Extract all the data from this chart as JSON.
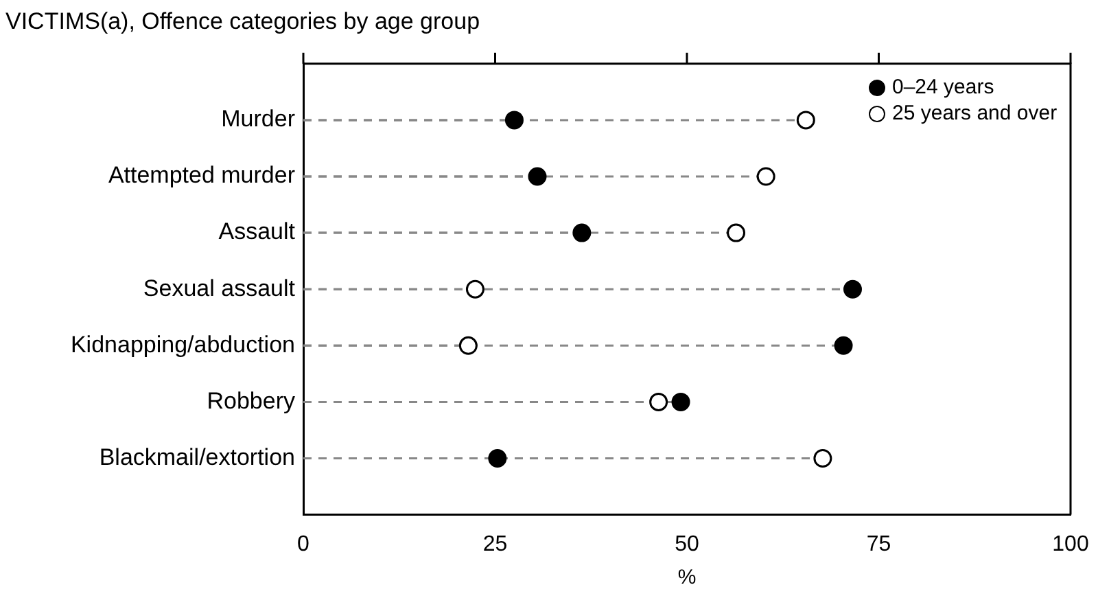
{
  "chart_data": {
    "type": "lollipop",
    "title": "VICTIMS(a), Offence categories by age group",
    "xlabel": "%",
    "categories": [
      "Murder",
      "Attempted murder",
      "Assault",
      "Sexual assault",
      "Kidnapping/abduction",
      "Robbery",
      "Blackmail/extortion"
    ],
    "orientation": "horizontal",
    "xlim": [
      0,
      100
    ],
    "xticks": [
      0,
      25,
      50,
      75,
      100
    ],
    "series": [
      {
        "name": "0–24 years",
        "color": "#000000",
        "values": [
          27.5,
          30.5,
          36.3,
          71.6,
          70.4,
          49.2,
          25.3
        ]
      },
      {
        "name": "25 years and over",
        "color": "#ffffff",
        "values": [
          65.5,
          60.3,
          56.4,
          22.4,
          21.5,
          46.3,
          67.7
        ]
      }
    ],
    "marker": "circle",
    "line_style": "dashed",
    "legend": "top right",
    "grid": false
  }
}
